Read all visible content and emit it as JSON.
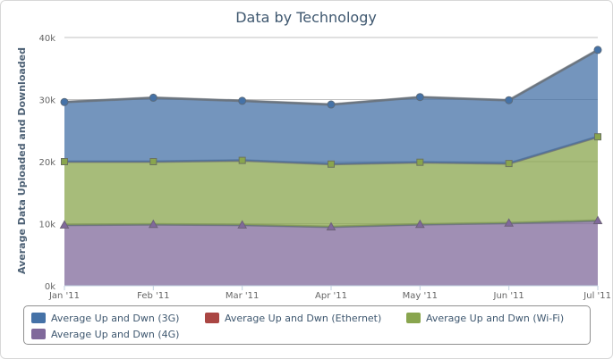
{
  "chart_data": {
    "type": "area",
    "stacked": true,
    "title": "Data by Technology",
    "ylabel": "Average Data Uploaded and Downloaded",
    "xlabel": "",
    "categories": [
      "Jan '11",
      "Feb '11",
      "Mar '11",
      "Apr '11",
      "May '11",
      "Jun '11",
      "Jul '11"
    ],
    "ylim": [
      0,
      40000
    ],
    "yticks": [
      0,
      10000,
      20000,
      30000,
      40000
    ],
    "ytick_labels": [
      "0k",
      "10k",
      "20k",
      "30k",
      "40k"
    ],
    "grid": true,
    "legend_position": "bottom",
    "series": [
      {
        "name": "Average Up and Dwn (3G)",
        "color": "#4572a7",
        "marker": "circle",
        "values": [
          9600,
          10300,
          9600,
          9600,
          10500,
          10200,
          14000
        ]
      },
      {
        "name": "Average Up and Dwn (Ethernet)",
        "color": "#aa4643",
        "marker": "diamond",
        "values": [
          0,
          0,
          0,
          0,
          0,
          0,
          0
        ]
      },
      {
        "name": "Average Up and Dwn (Wi-Fi)",
        "color": "#89a54e",
        "marker": "square",
        "values": [
          10200,
          10100,
          10400,
          10100,
          10000,
          9600,
          13500
        ]
      },
      {
        "name": "Average Up and Dwn (4G)",
        "color": "#80699b",
        "marker": "triangle",
        "values": [
          9800,
          9900,
          9800,
          9500,
          9900,
          10100,
          10500
        ]
      }
    ],
    "stack_order_bottom_to_top": [
      3,
      2,
      1,
      0
    ]
  }
}
